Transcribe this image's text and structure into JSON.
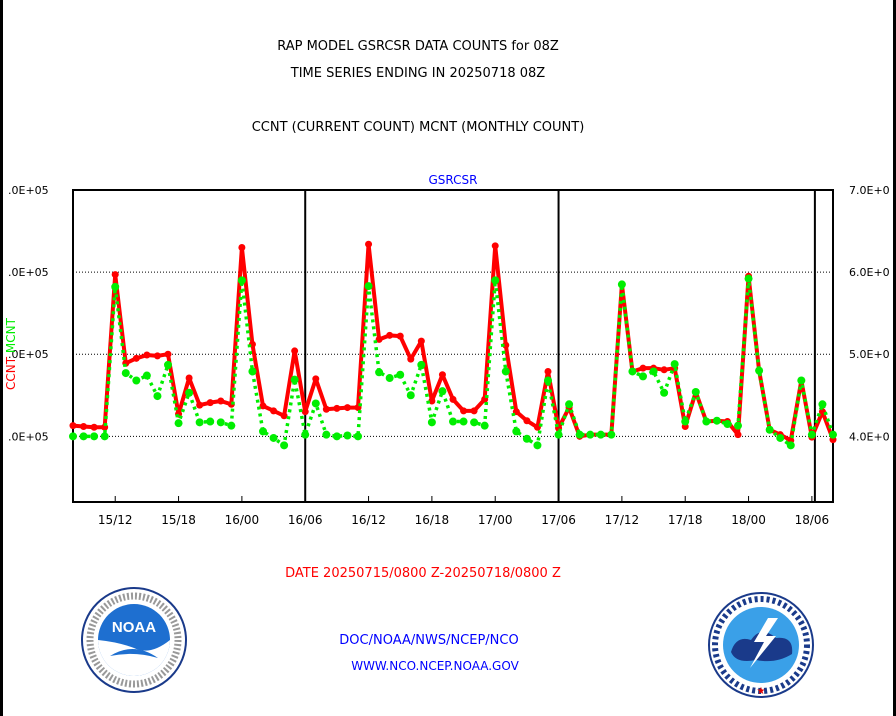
{
  "title_line1": "RAP MODEL GSRCSR DATA COUNTS for 08Z",
  "title_line2": "TIME SERIES ENDING IN 20250718 08Z",
  "title_line3": "CCNT (CURRENT COUNT) MCNT (MONTHLY COUNT)",
  "date_range": "DATE 20250715/0800 Z-20250718/0800 Z",
  "footer_line1": "DOC/NOAA/NWS/NCEP/NCO",
  "footer_line2": "WWW.NCO.NCEP.NOAA.GOV",
  "logos": {
    "left": "NOAA",
    "right": "NATIONAL WEATHER SERVICE"
  },
  "chart_data": {
    "type": "line",
    "title": "GSRCSR",
    "xlabel": "",
    "ylabel_parts": [
      "CCNT",
      "MCNT"
    ],
    "ylim": [
      3.2,
      7.0
    ],
    "grid": "horizontal dotted at 4,5,6; vertical solid at 06Z",
    "left_tick_labels": [
      ".0E+05",
      ".0E+05",
      ".0E+05",
      ".0E+05"
    ],
    "left_tick_values": [
      7,
      6,
      5,
      4
    ],
    "right_tick_labels": [
      "7.0E+0",
      "6.0E+0",
      "5.0E+0",
      "4.0E+0"
    ],
    "right_tick_values": [
      7,
      6,
      5,
      4
    ],
    "x_start": "15/08",
    "x_step_hours": 1,
    "x_tick_labels": [
      "15/12",
      "15/18",
      "16/00",
      "16/06",
      "16/12",
      "16/18",
      "17/00",
      "17/06",
      "17/12",
      "17/18",
      "18/00",
      "18/06"
    ],
    "x_tick_hours": [
      4,
      10,
      16,
      22,
      28,
      34,
      40,
      46,
      52,
      58,
      64,
      70
    ],
    "vlines_hours": [
      22,
      46,
      70
    ],
    "series": [
      {
        "name": "CCNT",
        "color": "#ff0000",
        "style": "solid",
        "values": [
          4.13,
          4.12,
          4.11,
          4.11,
          5.97,
          4.89,
          4.95,
          4.99,
          4.98,
          5.0,
          4.27,
          4.71,
          4.38,
          4.41,
          4.43,
          4.39,
          6.3,
          5.12,
          4.37,
          4.31,
          4.25,
          5.04,
          4.3,
          4.7,
          4.33,
          4.34,
          4.35,
          4.35,
          6.34,
          5.18,
          5.23,
          5.22,
          4.94,
          5.16,
          4.43,
          4.75,
          4.45,
          4.31,
          4.31,
          4.45,
          6.32,
          5.11,
          4.3,
          4.19,
          4.11,
          4.79,
          4.1,
          4.35,
          4.0,
          4.02,
          4.02,
          4.02,
          5.85,
          4.79,
          4.83,
          4.83,
          4.81,
          4.83,
          4.12,
          4.54,
          4.18,
          4.19,
          4.18,
          4.02,
          5.95,
          4.8,
          4.08,
          4.02,
          3.95,
          4.68,
          3.99,
          4.3,
          3.96
        ]
      },
      {
        "name": "MCNT",
        "color": "#00ee00",
        "style": "dotted",
        "values": [
          4.0,
          4.0,
          4.0,
          4.0,
          5.82,
          4.77,
          4.68,
          4.74,
          4.49,
          4.87,
          4.16,
          4.53,
          4.17,
          4.18,
          4.17,
          4.13,
          5.9,
          4.79,
          4.06,
          3.98,
          3.89,
          4.69,
          4.02,
          4.4,
          4.02,
          4.0,
          4.01,
          4.0,
          5.83,
          4.78,
          4.71,
          4.75,
          4.5,
          4.87,
          4.17,
          4.55,
          4.18,
          4.18,
          4.17,
          4.13,
          5.9,
          4.79,
          4.06,
          3.97,
          3.89,
          4.68,
          4.02,
          4.39,
          4.02,
          4.02,
          4.02,
          4.02,
          5.85,
          4.79,
          4.73,
          4.79,
          4.53,
          4.88,
          4.18,
          4.54,
          4.18,
          4.19,
          4.15,
          4.13,
          5.92,
          4.8,
          4.08,
          3.98,
          3.89,
          4.68,
          4.02,
          4.39,
          4.02
        ]
      }
    ]
  }
}
